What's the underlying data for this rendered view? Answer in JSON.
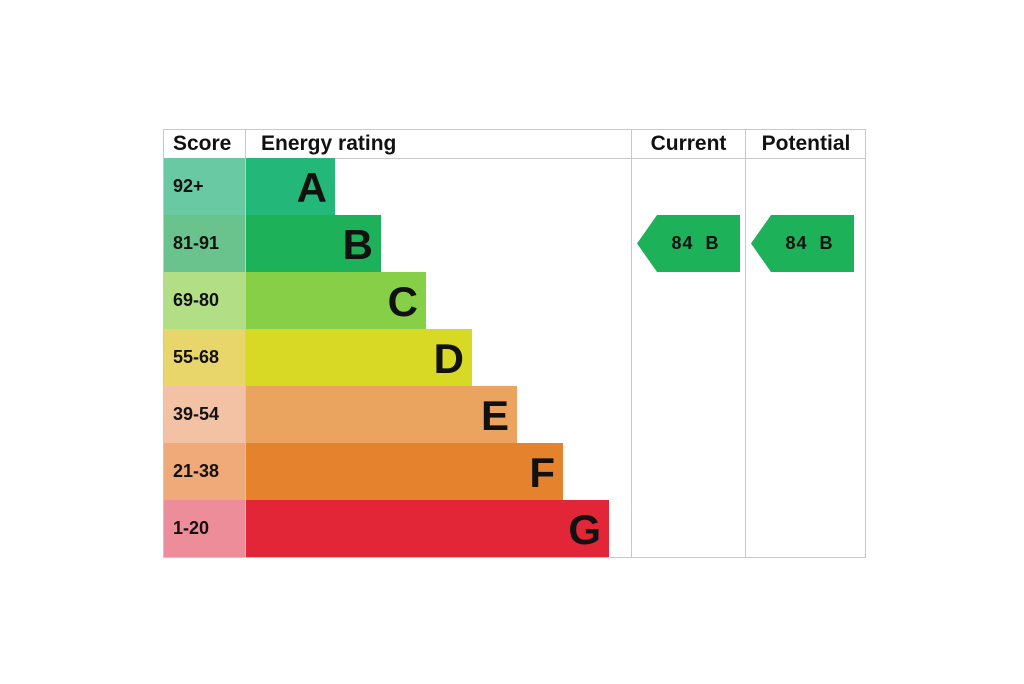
{
  "chart_data": {
    "type": "table",
    "headers": {
      "score": "Score",
      "rating": "Energy rating",
      "current": "Current",
      "potential": "Potential"
    },
    "bands": [
      {
        "score": "92+",
        "letter": "A",
        "color": "#23b879",
        "score_color": "#69c9a2"
      },
      {
        "score": "81-91",
        "letter": "B",
        "color": "#1db15a",
        "score_color": "#6ac38c"
      },
      {
        "score": "69-80",
        "letter": "C",
        "color": "#86cf47",
        "score_color": "#b2de86"
      },
      {
        "score": "55-68",
        "letter": "D",
        "color": "#d7d925",
        "score_color": "#e9d66a"
      },
      {
        "score": "39-54",
        "letter": "E",
        "color": "#eaa460",
        "score_color": "#f3c1a3"
      },
      {
        "score": "21-38",
        "letter": "F",
        "color": "#e5822d",
        "score_color": "#f0a978"
      },
      {
        "score": "1-20",
        "letter": "G",
        "color": "#e22638",
        "score_color": "#ee8d9a"
      }
    ],
    "current": {
      "value": 84,
      "letter": "B",
      "color": "#1db15a"
    },
    "potential": {
      "value": 84,
      "letter": "B",
      "color": "#1db15a"
    }
  }
}
